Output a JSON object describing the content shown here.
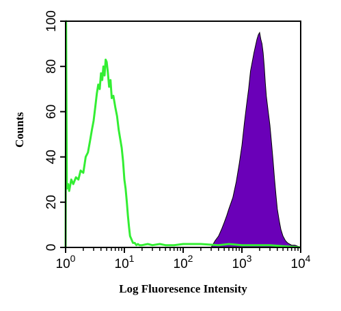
{
  "chart_data": {
    "type": "area",
    "xlabel": "Log Fluoresence Intensity",
    "ylabel": "Counts",
    "xscale": "log",
    "xlim": [
      1,
      10000
    ],
    "ylim": [
      0,
      100
    ],
    "x_ticks": [
      {
        "value": 1,
        "base": "10",
        "exp": "0"
      },
      {
        "value": 10,
        "base": "10",
        "exp": "1"
      },
      {
        "value": 100,
        "base": "10",
        "exp": "2"
      },
      {
        "value": 1000,
        "base": "10",
        "exp": "3"
      },
      {
        "value": 10000,
        "base": "10",
        "exp": "4"
      }
    ],
    "y_ticks": [
      "0",
      "20",
      "40",
      "60",
      "80",
      "100"
    ],
    "y_tick_values": [
      0,
      20,
      40,
      60,
      80,
      100
    ],
    "colors": {
      "control": "#33ee33",
      "sample": "#6a00b8",
      "frame": "#000000"
    },
    "series": [
      {
        "style": "outline",
        "x": [
          1.0,
          1.02,
          1.05,
          1.1,
          1.15,
          1.25,
          1.35,
          1.5,
          1.65,
          1.8,
          2.0,
          2.2,
          2.4,
          2.6,
          2.8,
          3.0,
          3.2,
          3.4,
          3.6,
          3.8,
          4.0,
          4.2,
          4.4,
          4.6,
          4.8,
          5.0,
          5.2,
          5.5,
          5.8,
          6.1,
          6.5,
          7.0,
          7.5,
          8.0,
          8.5,
          9.0,
          9.5,
          10.0,
          10.5,
          11.0,
          11.5,
          12.0,
          12.5,
          13.0,
          13.5,
          14.0,
          15.0,
          16.0,
          17.0,
          18.0,
          20.0,
          25.0,
          30.0,
          40.0,
          50.0,
          70.0,
          100.0,
          200.0,
          400.0,
          600.0,
          1000.0,
          3000.0,
          10000.0
        ],
        "y": [
          0,
          100,
          26,
          28,
          25,
          30,
          28,
          31,
          30,
          34,
          33,
          40,
          42,
          47,
          52,
          56,
          62,
          68,
          72,
          70,
          77,
          74,
          80,
          76,
          83,
          82,
          78,
          71,
          74,
          66,
          67,
          62,
          58,
          52,
          48,
          44,
          38,
          30,
          26,
          20,
          14,
          9,
          5,
          4,
          3,
          2,
          2,
          1,
          1.5,
          1,
          1,
          1.5,
          1,
          1.5,
          1,
          1,
          1.5,
          1.5,
          1,
          1.5,
          1,
          1,
          0
        ]
      },
      {
        "style": "filled",
        "x": [
          300,
          350,
          400,
          450,
          500,
          550,
          600,
          700,
          800,
          900,
          1000,
          1100,
          1200,
          1300,
          1400,
          1500,
          1600,
          1700,
          1800,
          1900,
          2000,
          2100,
          2200,
          2300,
          2400,
          2500,
          2600,
          2800,
          3000,
          3200,
          3400,
          3600,
          3800,
          4000,
          4300,
          4600,
          5000,
          5500,
          6000,
          7000,
          8000,
          10000
        ],
        "y": [
          0,
          3,
          5,
          8,
          11,
          14,
          17,
          22,
          29,
          37,
          45,
          55,
          63,
          70,
          78,
          82,
          86,
          89,
          92,
          94,
          95,
          92,
          90,
          86,
          80,
          73,
          67,
          60,
          54,
          46,
          38,
          30,
          23,
          17,
          12,
          8,
          5,
          3,
          2,
          1,
          1,
          0
        ]
      }
    ]
  }
}
